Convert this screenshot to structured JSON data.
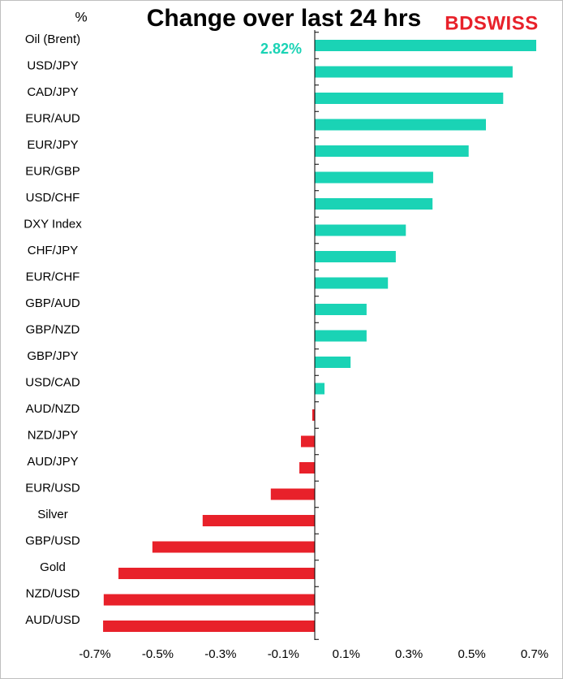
{
  "chart_data": {
    "type": "barh",
    "title": "Change over last 24 hrs",
    "unit_label": "%",
    "brand": "BDSWISS",
    "categories": [
      "Oil (Brent)",
      "USD/JPY",
      "CAD/JPY",
      "EUR/AUD",
      "EUR/JPY",
      "EUR/GBP",
      "USD/CHF",
      "DXY Index",
      "CHF/JPY",
      "EUR/CHF",
      "GBP/AUD",
      "GBP/NZD",
      "GBP/JPY",
      "USD/CAD",
      "AUD/NZD",
      "NZD/JPY",
      "AUD/JPY",
      "EUR/USD",
      "Silver",
      "GBP/USD",
      "Gold",
      "NZD/USD",
      "AUD/USD"
    ],
    "values": [
      2.82,
      0.63,
      0.6,
      0.545,
      0.49,
      0.377,
      0.375,
      0.29,
      0.258,
      0.233,
      0.165,
      0.165,
      0.114,
      0.031,
      -0.008,
      -0.044,
      -0.049,
      -0.14,
      -0.357,
      -0.517,
      -0.625,
      -0.672,
      -0.674
    ],
    "value_labels": [
      "2.82%",
      null,
      null,
      null,
      null,
      null,
      null,
      null,
      null,
      null,
      null,
      null,
      null,
      null,
      null,
      null,
      null,
      null,
      null,
      null,
      null,
      null,
      null
    ],
    "value_label_color": "#1ad3b5",
    "positive_color": "#1ad3b5",
    "negative_color": "#e8212a",
    "xlim": [
      -0.7,
      0.7
    ],
    "xticks": [
      {
        "value": -0.7,
        "label": "-0.7%"
      },
      {
        "value": -0.5,
        "label": "-0.5%"
      },
      {
        "value": -0.3,
        "label": "-0.3%"
      },
      {
        "value": -0.1,
        "label": "-0.1%"
      },
      {
        "value": 0.1,
        "label": "0.1%"
      },
      {
        "value": 0.3,
        "label": "0.3%"
      },
      {
        "value": 0.5,
        "label": "0.5%"
      },
      {
        "value": 0.7,
        "label": "0.7%"
      }
    ],
    "grid": false
  }
}
